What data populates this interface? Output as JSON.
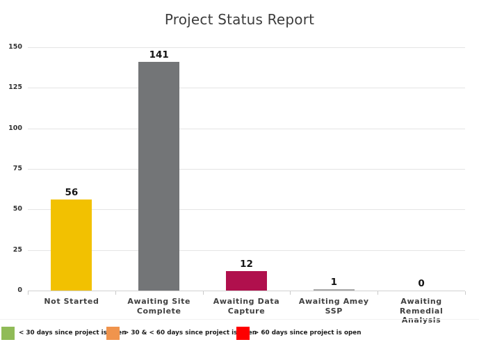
{
  "title": "Project Status Report",
  "chart_data": {
    "type": "bar",
    "title": "Project Status Report",
    "categories": [
      "Not Started",
      "Awaiting Site Complete",
      "Awaiting Data Capture",
      "Awaiting Amey SSP",
      "Awaiting Remedial Analysis"
    ],
    "values": [
      56,
      141,
      12,
      1,
      0
    ],
    "data_labels": [
      "56",
      "141",
      "12",
      "1",
      "0"
    ],
    "bar_colors": [
      "#F2C101",
      "#737577",
      "#B0104D",
      "#A9A9A9",
      "#A9A9A9"
    ],
    "xlabel": "",
    "ylabel": "",
    "ylim": [
      0,
      150
    ],
    "yticks": [
      0,
      25,
      50,
      75,
      100,
      125,
      150
    ],
    "grid": true,
    "legend_position": "bottom"
  },
  "legend": {
    "items": [
      {
        "label": "< 30 days since project is open",
        "color": "#90BB57"
      },
      {
        "label": "> 30 & < 60 days since project is open",
        "color": "#F0944D"
      },
      {
        "label": "> 60 days since project is open",
        "color": "#FE0000"
      }
    ]
  },
  "colors": {
    "background": "#FFFFFF",
    "gridline": "#E4E4E4",
    "axis": "#D2D2D2",
    "title_text": "#3C3C3C",
    "label_text": "#3F3F3F",
    "value_text": "#141414"
  }
}
